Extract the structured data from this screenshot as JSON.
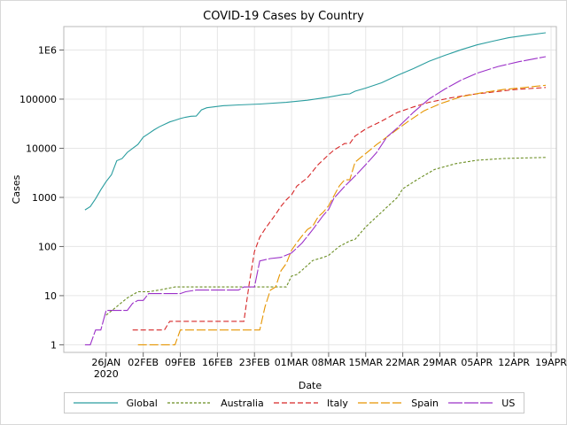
{
  "chart_data": {
    "type": "line",
    "title": "COVID-19 Cases by Country",
    "xlabel": "Date",
    "ylabel": "Cases",
    "y_scale": "log",
    "ylim": [
      0.7,
      3000000
    ],
    "xlim": [
      "2020-01-18",
      "2020-04-20"
    ],
    "grid": true,
    "legend_position": "bottom",
    "x_ticks": [
      {
        "date": "2020-01-26",
        "label": "26JAN",
        "sublabel": "2020"
      },
      {
        "date": "2020-02-02",
        "label": "02FEB",
        "sublabel": ""
      },
      {
        "date": "2020-02-09",
        "label": "09FEB",
        "sublabel": ""
      },
      {
        "date": "2020-02-16",
        "label": "16FEB",
        "sublabel": ""
      },
      {
        "date": "2020-02-23",
        "label": "23FEB",
        "sublabel": ""
      },
      {
        "date": "2020-03-01",
        "label": "01MAR",
        "sublabel": ""
      },
      {
        "date": "2020-03-08",
        "label": "08MAR",
        "sublabel": ""
      },
      {
        "date": "2020-03-15",
        "label": "15MAR",
        "sublabel": ""
      },
      {
        "date": "2020-03-22",
        "label": "22MAR",
        "sublabel": ""
      },
      {
        "date": "2020-03-29",
        "label": "29MAR",
        "sublabel": ""
      },
      {
        "date": "2020-04-05",
        "label": "05APR",
        "sublabel": ""
      },
      {
        "date": "2020-04-12",
        "label": "12APR",
        "sublabel": ""
      },
      {
        "date": "2020-04-19",
        "label": "19APR",
        "sublabel": ""
      }
    ],
    "y_ticks": [
      {
        "value": 1,
        "label": "1"
      },
      {
        "value": 10,
        "label": "10"
      },
      {
        "value": 100,
        "label": "100"
      },
      {
        "value": 1000,
        "label": "1000"
      },
      {
        "value": 10000,
        "label": "10000"
      },
      {
        "value": 100000,
        "label": "100000"
      },
      {
        "value": 1000000,
        "label": "1E6"
      }
    ],
    "series": [
      {
        "name": "Global",
        "color": "#2a9d9f",
        "dash": "solid",
        "points": [
          [
            "2020-01-22",
            555
          ],
          [
            "2020-01-23",
            650
          ],
          [
            "2020-01-24",
            940
          ],
          [
            "2020-01-25",
            1430
          ],
          [
            "2020-01-26",
            2100
          ],
          [
            "2020-01-27",
            2900
          ],
          [
            "2020-01-28",
            5580
          ],
          [
            "2020-01-29",
            6170
          ],
          [
            "2020-01-30",
            8240
          ],
          [
            "2020-01-31",
            9930
          ],
          [
            "2020-02-01",
            12000
          ],
          [
            "2020-02-02",
            16800
          ],
          [
            "2020-02-03",
            19900
          ],
          [
            "2020-02-04",
            23500
          ],
          [
            "2020-02-05",
            27200
          ],
          [
            "2020-02-06",
            30600
          ],
          [
            "2020-02-07",
            34400
          ],
          [
            "2020-02-08",
            37100
          ],
          [
            "2020-02-09",
            40200
          ],
          [
            "2020-02-10",
            42800
          ],
          [
            "2020-02-11",
            44800
          ],
          [
            "2020-02-12",
            45200
          ],
          [
            "2020-02-13",
            60400
          ],
          [
            "2020-02-14",
            66700
          ],
          [
            "2020-02-15",
            69000
          ],
          [
            "2020-02-17",
            73300
          ],
          [
            "2020-02-20",
            76200
          ],
          [
            "2020-02-24",
            79600
          ],
          [
            "2020-02-29",
            86000
          ],
          [
            "2020-03-04",
            95100
          ],
          [
            "2020-03-08",
            109800
          ],
          [
            "2020-03-11",
            125900
          ],
          [
            "2020-03-12",
            128300
          ],
          [
            "2020-03-13",
            145200
          ],
          [
            "2020-03-15",
            167400
          ],
          [
            "2020-03-18",
            214900
          ],
          [
            "2020-03-21",
            304500
          ],
          [
            "2020-03-24",
            417900
          ],
          [
            "2020-03-27",
            593300
          ],
          [
            "2020-03-30",
            782400
          ],
          [
            "2020-04-02",
            1013000
          ],
          [
            "2020-04-05",
            1272000
          ],
          [
            "2020-04-08",
            1512000
          ],
          [
            "2020-04-11",
            1777000
          ],
          [
            "2020-04-14",
            1976000
          ],
          [
            "2020-04-18",
            2240000
          ]
        ]
      },
      {
        "name": "Australia",
        "color": "#6b8e23",
        "dash": "3,2",
        "points": [
          [
            "2020-01-26",
            4
          ],
          [
            "2020-01-30",
            9
          ],
          [
            "2020-02-01",
            12
          ],
          [
            "2020-02-03",
            12
          ],
          [
            "2020-02-05",
            13
          ],
          [
            "2020-02-08",
            15
          ],
          [
            "2020-02-20",
            15
          ],
          [
            "2020-02-29",
            15
          ],
          [
            "2020-03-01",
            25
          ],
          [
            "2020-03-02",
            27
          ],
          [
            "2020-03-03",
            33
          ],
          [
            "2020-03-05",
            52
          ],
          [
            "2020-03-07",
            60
          ],
          [
            "2020-03-08",
            66
          ],
          [
            "2020-03-10",
            100
          ],
          [
            "2020-03-12",
            130
          ],
          [
            "2020-03-13",
            140
          ],
          [
            "2020-03-15",
            250
          ],
          [
            "2020-03-18",
            500
          ],
          [
            "2020-03-21",
            1000
          ],
          [
            "2020-03-22",
            1500
          ],
          [
            "2020-03-25",
            2400
          ],
          [
            "2020-03-28",
            3700
          ],
          [
            "2020-04-01",
            4860
          ],
          [
            "2020-04-05",
            5700
          ],
          [
            "2020-04-10",
            6200
          ],
          [
            "2020-04-18",
            6500
          ]
        ]
      },
      {
        "name": "Italy",
        "color": "#d62728",
        "dash": "6,3",
        "points": [
          [
            "2020-01-31",
            2
          ],
          [
            "2020-02-06",
            2
          ],
          [
            "2020-02-07",
            3
          ],
          [
            "2020-02-21",
            3
          ],
          [
            "2020-02-22",
            17
          ],
          [
            "2020-02-23",
            79
          ],
          [
            "2020-02-24",
            155
          ],
          [
            "2020-02-25",
            229
          ],
          [
            "2020-02-26",
            322
          ],
          [
            "2020-02-27",
            453
          ],
          [
            "2020-02-28",
            655
          ],
          [
            "2020-02-29",
            888
          ],
          [
            "2020-03-01",
            1128
          ],
          [
            "2020-03-02",
            1694
          ],
          [
            "2020-03-04",
            2502
          ],
          [
            "2020-03-06",
            4636
          ],
          [
            "2020-03-08",
            7375
          ],
          [
            "2020-03-09",
            9172
          ],
          [
            "2020-03-11",
            12462
          ],
          [
            "2020-03-12",
            12462
          ],
          [
            "2020-03-13",
            17660
          ],
          [
            "2020-03-15",
            24747
          ],
          [
            "2020-03-18",
            35713
          ],
          [
            "2020-03-21",
            53578
          ],
          [
            "2020-03-24",
            69176
          ],
          [
            "2020-03-27",
            86498
          ],
          [
            "2020-03-31",
            105792
          ],
          [
            "2020-04-04",
            124632
          ],
          [
            "2020-04-08",
            139422
          ],
          [
            "2020-04-12",
            156363
          ],
          [
            "2020-04-18",
            172434
          ]
        ]
      },
      {
        "name": "Spain",
        "color": "#e69500",
        "dash": "10,3",
        "points": [
          [
            "2020-02-01",
            1
          ],
          [
            "2020-02-08",
            1
          ],
          [
            "2020-02-09",
            2
          ],
          [
            "2020-02-24",
            2
          ],
          [
            "2020-02-25",
            6
          ],
          [
            "2020-02-26",
            13
          ],
          [
            "2020-02-27",
            15
          ],
          [
            "2020-02-28",
            32
          ],
          [
            "2020-02-29",
            45
          ],
          [
            "2020-03-01",
            84
          ],
          [
            "2020-03-02",
            120
          ],
          [
            "2020-03-03",
            165
          ],
          [
            "2020-03-04",
            222
          ],
          [
            "2020-03-05",
            259
          ],
          [
            "2020-03-06",
            400
          ],
          [
            "2020-03-07",
            500
          ],
          [
            "2020-03-08",
            673
          ],
          [
            "2020-03-09",
            1073
          ],
          [
            "2020-03-10",
            1695
          ],
          [
            "2020-03-11",
            2277
          ],
          [
            "2020-03-12",
            2277
          ],
          [
            "2020-03-13",
            5232
          ],
          [
            "2020-03-14",
            6391
          ],
          [
            "2020-03-15",
            7798
          ],
          [
            "2020-03-17",
            11748
          ],
          [
            "2020-03-20",
            20410
          ],
          [
            "2020-03-23",
            35136
          ],
          [
            "2020-03-26",
            57786
          ],
          [
            "2020-03-29",
            80110
          ],
          [
            "2020-04-02",
            112065
          ],
          [
            "2020-04-06",
            135032
          ],
          [
            "2020-04-10",
            157022
          ],
          [
            "2020-04-14",
            172541
          ],
          [
            "2020-04-18",
            191726
          ]
        ]
      },
      {
        "name": "US",
        "color": "#9b30c8",
        "dash": "16,2",
        "points": [
          [
            "2020-01-22",
            1
          ],
          [
            "2020-01-23",
            1
          ],
          [
            "2020-01-24",
            2
          ],
          [
            "2020-01-25",
            2
          ],
          [
            "2020-01-26",
            5
          ],
          [
            "2020-01-30",
            5
          ],
          [
            "2020-01-31",
            7
          ],
          [
            "2020-02-01",
            8
          ],
          [
            "2020-02-02",
            8
          ],
          [
            "2020-02-03",
            11
          ],
          [
            "2020-02-09",
            11
          ],
          [
            "2020-02-10",
            12
          ],
          [
            "2020-02-12",
            13
          ],
          [
            "2020-02-20",
            13
          ],
          [
            "2020-02-21",
            15
          ],
          [
            "2020-02-23",
            15
          ],
          [
            "2020-02-24",
            51
          ],
          [
            "2020-02-26",
            57
          ],
          [
            "2020-02-28",
            60
          ],
          [
            "2020-03-01",
            74
          ],
          [
            "2020-03-03",
            118
          ],
          [
            "2020-03-05",
            221
          ],
          [
            "2020-03-07",
            432
          ],
          [
            "2020-03-08",
            568
          ],
          [
            "2020-03-09",
            959
          ],
          [
            "2020-03-11",
            1670
          ],
          [
            "2020-03-13",
            2727
          ],
          [
            "2020-03-15",
            4632
          ],
          [
            "2020-03-17",
            8000
          ],
          [
            "2020-03-19",
            17000
          ],
          [
            "2020-03-21",
            26000
          ],
          [
            "2020-03-24",
            53740
          ],
          [
            "2020-03-27",
            101657
          ],
          [
            "2020-03-30",
            161807
          ],
          [
            "2020-04-02",
            243453
          ],
          [
            "2020-04-05",
            337072
          ],
          [
            "2020-04-09",
            461437
          ],
          [
            "2020-04-13",
            580619
          ],
          [
            "2020-04-18",
            732197
          ]
        ]
      }
    ]
  }
}
